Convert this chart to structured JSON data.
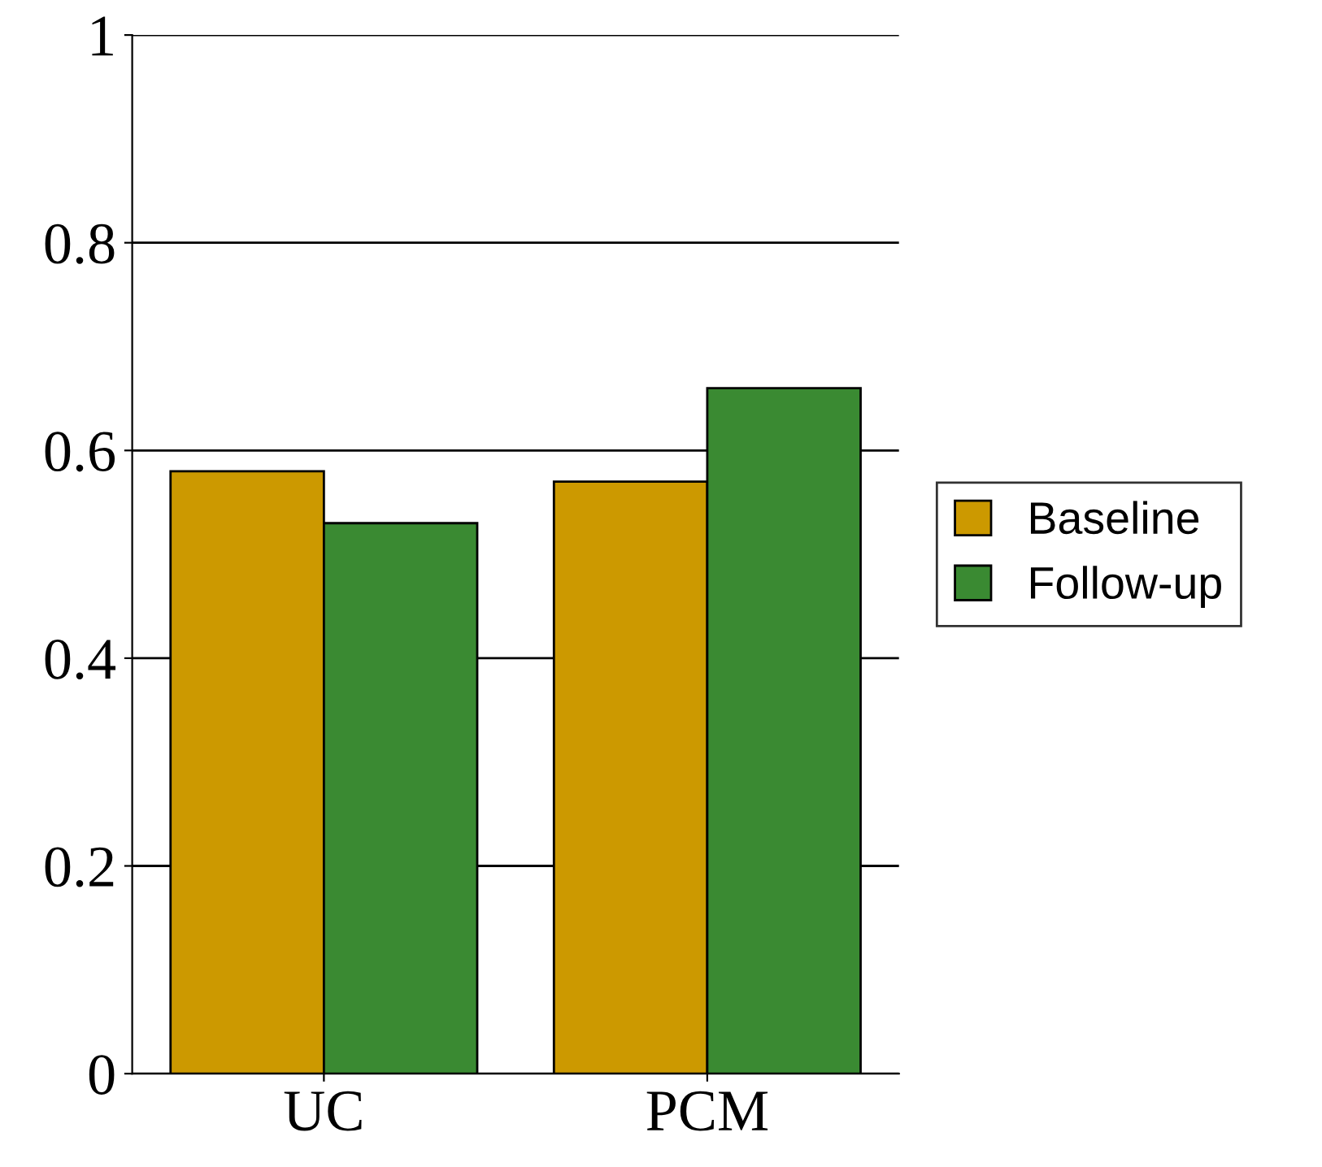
{
  "chart_data": {
    "type": "bar",
    "categories": [
      "UC",
      "PCM"
    ],
    "series": [
      {
        "name": "Baseline",
        "color": "#cc9900",
        "values": [
          0.58,
          0.57
        ]
      },
      {
        "name": "Follow-up",
        "color": "#3a8a32",
        "values": [
          0.53,
          0.66
        ]
      }
    ],
    "ylim": [
      0,
      1
    ],
    "yticks": [
      0,
      0.2,
      0.4,
      0.6,
      0.8,
      1
    ],
    "grid": "y",
    "legend": "right"
  }
}
